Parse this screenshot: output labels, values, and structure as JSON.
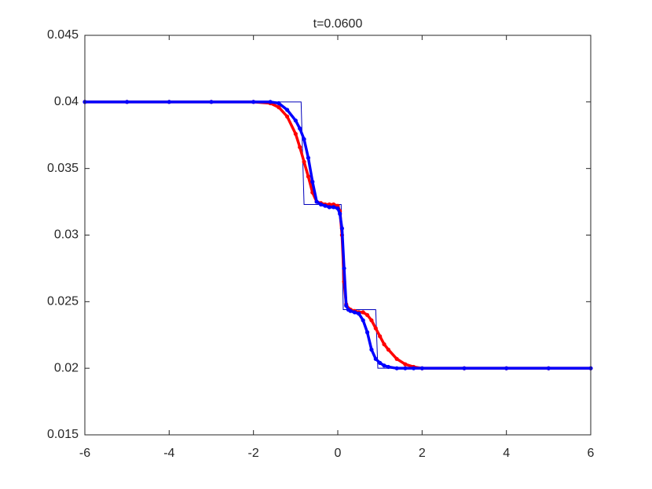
{
  "chart_data": {
    "type": "line",
    "title": "t=0.0600",
    "xlim": [
      -6,
      6
    ],
    "xticks": [
      -6,
      -4,
      -2,
      0,
      2,
      4,
      6
    ],
    "ylim": [
      0.015,
      0.045
    ],
    "yticks": [
      0.015,
      0.02,
      0.025,
      0.03,
      0.035,
      0.04,
      0.045
    ],
    "grid": false,
    "series": [
      {
        "color": "#0000bb",
        "style": "line",
        "x": [
          -6,
          -0.87,
          -0.8,
          0.08,
          0.13,
          0.9,
          0.95,
          6
        ],
        "values": [
          0.04,
          0.04,
          0.0323,
          0.0323,
          0.0244,
          0.0244,
          0.02,
          0.02
        ]
      },
      {
        "color": "#ff0000",
        "style": "markers",
        "x": [
          -6,
          -5,
          -4,
          -3,
          -2,
          -1.6,
          -1.4,
          -1.2,
          -1.0,
          -0.9,
          -0.8,
          -0.7,
          -0.6,
          -0.5,
          -0.4,
          -0.3,
          -0.2,
          -0.1,
          0,
          0.05,
          0.1,
          0.15,
          0.2,
          0.25,
          0.3,
          0.4,
          0.5,
          0.6,
          0.7,
          0.8,
          0.9,
          1.0,
          1.1,
          1.2,
          1.4,
          1.6,
          1.8,
          2,
          3,
          4,
          5,
          6
        ],
        "values": [
          0.04,
          0.04,
          0.04,
          0.04,
          0.04,
          0.0399,
          0.0396,
          0.0389,
          0.0376,
          0.0366,
          0.0355,
          0.0344,
          0.0332,
          0.0325,
          0.0324,
          0.0323,
          0.0323,
          0.0323,
          0.0322,
          0.0318,
          0.03,
          0.0265,
          0.0248,
          0.0245,
          0.0244,
          0.0243,
          0.0242,
          0.0242,
          0.024,
          0.0236,
          0.023,
          0.0224,
          0.0218,
          0.0214,
          0.0207,
          0.0203,
          0.0201,
          0.02,
          0.02,
          0.02,
          0.02,
          0.02
        ]
      },
      {
        "color": "#0000ff",
        "style": "markers",
        "x": [
          -6,
          -5,
          -4,
          -3,
          -2,
          -1.6,
          -1.4,
          -1.2,
          -1.0,
          -0.9,
          -0.8,
          -0.7,
          -0.6,
          -0.5,
          -0.4,
          -0.3,
          -0.2,
          -0.1,
          0,
          0.05,
          0.1,
          0.15,
          0.2,
          0.25,
          0.3,
          0.4,
          0.5,
          0.6,
          0.7,
          0.8,
          0.9,
          1.0,
          1.1,
          1.2,
          1.4,
          1.6,
          1.8,
          2,
          3,
          4,
          5,
          6
        ],
        "values": [
          0.04,
          0.04,
          0.04,
          0.04,
          0.04,
          0.04,
          0.0399,
          0.0394,
          0.0386,
          0.038,
          0.0372,
          0.0358,
          0.034,
          0.0325,
          0.0323,
          0.0322,
          0.0321,
          0.0321,
          0.032,
          0.0316,
          0.0305,
          0.0275,
          0.0247,
          0.0244,
          0.0243,
          0.0242,
          0.0241,
          0.0236,
          0.0227,
          0.0214,
          0.0207,
          0.0204,
          0.0202,
          0.0201,
          0.02,
          0.02,
          0.02,
          0.02,
          0.02,
          0.02,
          0.02,
          0.02
        ]
      }
    ]
  }
}
